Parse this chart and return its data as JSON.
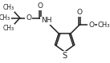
{
  "bg_color": "#ffffff",
  "line_color": "#222222",
  "line_width": 1.1,
  "font_size": 6.5,
  "figsize": [
    1.37,
    0.79
  ],
  "dpi": 100,
  "xlim": [
    0,
    137
  ],
  "ylim": [
    0,
    79
  ]
}
